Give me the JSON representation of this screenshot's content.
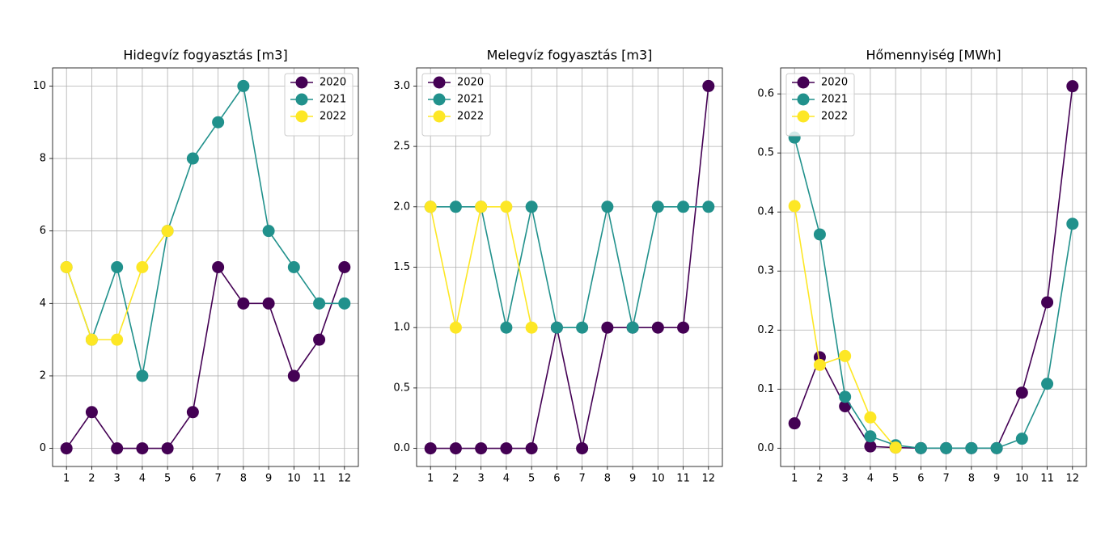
{
  "chart_data": [
    {
      "type": "line",
      "title": "Hidegvíz fogyasztás [m3]",
      "x": [
        1,
        2,
        3,
        4,
        5,
        6,
        7,
        8,
        9,
        10,
        11,
        12
      ],
      "series": [
        {
          "name": "2020",
          "color": "#440154",
          "values": [
            0,
            1,
            0,
            0,
            0,
            1,
            5,
            4,
            4,
            2,
            3,
            5
          ]
        },
        {
          "name": "2021",
          "color": "#21918c",
          "values": [
            5,
            3,
            5,
            2,
            6,
            8,
            9,
            10,
            6,
            5,
            4,
            4
          ]
        },
        {
          "name": "2022",
          "color": "#fde725",
          "values": [
            5,
            3,
            3,
            5,
            6,
            null,
            null,
            null,
            null,
            null,
            null,
            null
          ]
        }
      ],
      "xlim": [
        0.45,
        12.55
      ],
      "xticks": [
        1,
        2,
        3,
        4,
        5,
        6,
        7,
        8,
        9,
        10,
        11,
        12
      ],
      "ylim": [
        -0.5,
        10.5
      ],
      "yticks": [
        0,
        2,
        4,
        6,
        8,
        10
      ],
      "grid": true,
      "legend": "upper right"
    },
    {
      "type": "line",
      "title": "Melegvíz fogyasztás [m3]",
      "x": [
        1,
        2,
        3,
        4,
        5,
        6,
        7,
        8,
        9,
        10,
        11,
        12
      ],
      "series": [
        {
          "name": "2020",
          "color": "#440154",
          "values": [
            0,
            0,
            0,
            0,
            0,
            1,
            0,
            1,
            1,
            1,
            1,
            3
          ]
        },
        {
          "name": "2021",
          "color": "#21918c",
          "values": [
            2,
            2,
            2,
            1,
            2,
            1,
            1,
            2,
            1,
            2,
            2,
            2
          ]
        },
        {
          "name": "2022",
          "color": "#fde725",
          "values": [
            2,
            1,
            2,
            2,
            1,
            null,
            null,
            null,
            null,
            null,
            null,
            null
          ]
        }
      ],
      "xlim": [
        0.45,
        12.55
      ],
      "xticks": [
        1,
        2,
        3,
        4,
        5,
        6,
        7,
        8,
        9,
        10,
        11,
        12
      ],
      "ylim": [
        -0.15,
        3.15
      ],
      "yticks": [
        {
          "value": 0,
          "label": "0.0"
        },
        0.5,
        {
          "value": 1,
          "label": "1.0"
        },
        1.5,
        {
          "value": 2,
          "label": "2.0"
        },
        2.5,
        {
          "value": 3,
          "label": "3.0"
        }
      ],
      "grid": true,
      "legend": "upper left"
    },
    {
      "type": "line",
      "title": "Hőmennyiség [MWh]",
      "x": [
        1,
        2,
        3,
        4,
        5,
        6,
        7,
        8,
        9,
        10,
        11,
        12
      ],
      "series": [
        {
          "name": "2020",
          "color": "#440154",
          "values": [
            0.042,
            0.154,
            0.071,
            0.003,
            0.001,
            0,
            0,
            0,
            0,
            0.094,
            0.247,
            0.613
          ]
        },
        {
          "name": "2021",
          "color": "#21918c",
          "values": [
            0.526,
            0.362,
            0.087,
            0.02,
            0.005,
            0,
            0,
            0,
            0,
            0.016,
            0.109,
            0.38
          ]
        },
        {
          "name": "2022",
          "color": "#fde725",
          "values": [
            0.41,
            0.141,
            0.156,
            0.052,
            0.001,
            null,
            null,
            null,
            null,
            null,
            null,
            null
          ]
        }
      ],
      "xlim": [
        0.45,
        12.55
      ],
      "xticks": [
        1,
        2,
        3,
        4,
        5,
        6,
        7,
        8,
        9,
        10,
        11,
        12
      ],
      "ylim": [
        -0.031,
        0.644
      ],
      "yticks": [
        {
          "value": 0,
          "label": "0.0"
        },
        0.1,
        0.2,
        0.3,
        0.4,
        0.5,
        0.6
      ],
      "grid": true,
      "legend": "upper left"
    }
  ]
}
